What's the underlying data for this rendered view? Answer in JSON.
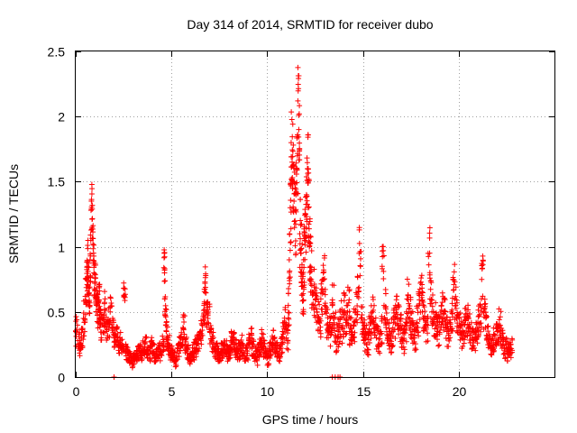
{
  "chart_data": {
    "type": "scatter",
    "title": "Day 314 of 2014, SRMTID for receiver dubo",
    "xlabel": "GPS time / hours",
    "ylabel": "SRMTID / TECUs",
    "xlim": [
      0,
      25
    ],
    "ylim": [
      0,
      2.5
    ],
    "xticks": [
      0,
      5,
      10,
      15,
      20
    ],
    "xtick_labels": [
      "0",
      "5",
      "10",
      "15",
      "20"
    ],
    "yticks": [
      0,
      0.5,
      1,
      1.5,
      2,
      2.5
    ],
    "ytick_labels": [
      "0",
      "0.5",
      "1",
      "1.5",
      "2",
      "2.5"
    ],
    "grid": true,
    "marker": "+",
    "color": "#ff0000",
    "series": [
      {
        "name": "SRMTID",
        "x": [
          0.0,
          0.1,
          0.2,
          0.3,
          0.4,
          0.5,
          0.55,
          0.6,
          0.65,
          0.7,
          0.75,
          0.8,
          0.85,
          0.9,
          0.95,
          1.0,
          1.05,
          1.1,
          1.15,
          1.2,
          1.25,
          1.3,
          1.4,
          1.5,
          1.6,
          1.7,
          1.8,
          1.9,
          2.0,
          2.1,
          2.2,
          2.3,
          2.4,
          2.5,
          2.6,
          2.7,
          2.8,
          2.9,
          3.0,
          3.1,
          3.2,
          3.3,
          3.4,
          3.5,
          3.6,
          3.7,
          3.8,
          3.9,
          4.0,
          4.1,
          4.2,
          4.3,
          4.4,
          4.5,
          4.6,
          4.65,
          4.7,
          4.75,
          4.8,
          4.9,
          5.0,
          5.1,
          5.2,
          5.3,
          5.4,
          5.5,
          5.6,
          5.7,
          5.8,
          5.9,
          6.0,
          6.1,
          6.2,
          6.3,
          6.4,
          6.5,
          6.6,
          6.7,
          6.75,
          6.8,
          6.9,
          7.0,
          7.1,
          7.2,
          7.3,
          7.4,
          7.5,
          7.6,
          7.7,
          7.8,
          7.9,
          8.0,
          8.1,
          8.2,
          8.3,
          8.4,
          8.5,
          8.6,
          8.7,
          8.8,
          8.9,
          9.0,
          9.1,
          9.2,
          9.3,
          9.4,
          9.5,
          9.6,
          9.7,
          9.8,
          9.9,
          10.0,
          10.1,
          10.2,
          10.3,
          10.4,
          10.5,
          10.6,
          10.7,
          10.8,
          10.9,
          11.0,
          11.1,
          11.15,
          11.2,
          11.25,
          11.3,
          11.35,
          11.4,
          11.45,
          11.5,
          11.55,
          11.6,
          11.65,
          11.7,
          11.75,
          11.8,
          11.85,
          11.9,
          11.95,
          12.0,
          12.05,
          12.1,
          12.15,
          12.2,
          12.25,
          12.3,
          12.4,
          12.5,
          12.6,
          12.7,
          12.8,
          12.9,
          13.0,
          13.1,
          13.2,
          13.3,
          13.4,
          13.5,
          13.6,
          13.7,
          13.8,
          13.9,
          14.0,
          14.1,
          14.2,
          14.3,
          14.4,
          14.5,
          14.6,
          14.7,
          14.8,
          14.9,
          15.0,
          15.1,
          15.2,
          15.3,
          15.4,
          15.5,
          15.6,
          15.7,
          15.8,
          15.9,
          16.0,
          16.1,
          16.2,
          16.3,
          16.4,
          16.5,
          16.6,
          16.7,
          16.8,
          16.9,
          17.0,
          17.1,
          17.2,
          17.3,
          17.4,
          17.5,
          17.6,
          17.7,
          17.8,
          17.9,
          18.0,
          18.1,
          18.2,
          18.3,
          18.4,
          18.5,
          18.6,
          18.7,
          18.8,
          18.9,
          19.0,
          19.1,
          19.2,
          19.3,
          19.4,
          19.5,
          19.6,
          19.7,
          19.8,
          19.9,
          20.0,
          20.1,
          20.2,
          20.3,
          20.4,
          20.5,
          20.6,
          20.7,
          20.8,
          20.9,
          21.0,
          21.1,
          21.2,
          21.3,
          21.4,
          21.5,
          21.6,
          21.7,
          21.8,
          21.9,
          22.0,
          22.1,
          22.2,
          22.3,
          22.4,
          22.5,
          22.6,
          22.7
        ],
        "y": [
          0.35,
          0.28,
          0.22,
          0.3,
          0.45,
          0.62,
          0.75,
          0.85,
          0.7,
          0.55,
          0.9,
          1.28,
          1.15,
          1.02,
          0.8,
          0.72,
          0.6,
          0.55,
          0.5,
          0.58,
          0.48,
          0.4,
          0.45,
          0.52,
          0.35,
          0.42,
          0.5,
          0.38,
          0.3,
          0.32,
          0.25,
          0.3,
          0.22,
          0.68,
          0.2,
          0.18,
          0.15,
          0.12,
          0.14,
          0.16,
          0.18,
          0.2,
          0.15,
          0.22,
          0.25,
          0.2,
          0.18,
          0.24,
          0.2,
          0.16,
          0.2,
          0.22,
          0.18,
          0.25,
          0.84,
          0.6,
          0.4,
          0.3,
          0.25,
          0.2,
          0.18,
          0.15,
          0.12,
          0.2,
          0.26,
          0.3,
          0.38,
          0.25,
          0.2,
          0.15,
          0.18,
          0.2,
          0.22,
          0.25,
          0.3,
          0.35,
          0.4,
          0.55,
          0.73,
          0.5,
          0.45,
          0.35,
          0.28,
          0.22,
          0.2,
          0.18,
          0.15,
          0.2,
          0.25,
          0.22,
          0.18,
          0.2,
          0.28,
          0.3,
          0.22,
          0.18,
          0.2,
          0.25,
          0.22,
          0.18,
          0.2,
          0.25,
          0.3,
          0.22,
          0.18,
          0.15,
          0.2,
          0.25,
          0.28,
          0.22,
          0.18,
          0.15,
          0.2,
          0.25,
          0.3,
          0.22,
          0.2,
          0.18,
          0.25,
          0.35,
          0.42,
          0.3,
          0.55,
          0.9,
          1.3,
          1.8,
          1.65,
          1.5,
          1.35,
          1.2,
          1.4,
          1.6,
          2.12,
          1.9,
          1.1,
          0.95,
          0.8,
          0.7,
          0.9,
          1.05,
          1.25,
          1.4,
          1.6,
          1.3,
          1.0,
          0.85,
          0.75,
          0.65,
          0.55,
          0.5,
          0.45,
          0.6,
          0.75,
          0.55,
          0.4,
          0.35,
          0.45,
          0.55,
          0.4,
          0.3,
          0.35,
          0.45,
          0.38,
          0.5,
          0.42,
          0.55,
          0.35,
          0.3,
          0.4,
          0.5,
          0.62,
          0.95,
          0.45,
          0.35,
          0.3,
          0.25,
          0.35,
          0.42,
          0.5,
          0.38,
          0.3,
          0.25,
          0.35,
          0.85,
          0.55,
          0.4,
          0.32,
          0.28,
          0.35,
          0.42,
          0.55,
          0.45,
          0.38,
          0.3,
          0.28,
          0.4,
          0.6,
          0.5,
          0.4,
          0.35,
          0.3,
          0.42,
          0.55,
          0.72,
          0.5,
          0.45,
          0.38,
          0.95,
          0.6,
          0.5,
          0.45,
          0.4,
          0.35,
          0.42,
          0.55,
          0.48,
          0.4,
          0.35,
          0.42,
          0.5,
          0.75,
          0.6,
          0.45,
          0.38,
          0.32,
          0.35,
          0.4,
          0.45,
          0.38,
          0.32,
          0.3,
          0.28,
          0.35,
          0.42,
          0.48,
          0.75,
          0.5,
          0.38,
          0.3,
          0.25,
          0.22,
          0.28,
          0.32,
          0.35,
          0.4,
          0.3,
          0.25,
          0.22,
          0.2,
          0.25,
          0.22
        ],
        "spread": [
          0.12,
          0.1,
          0.08,
          0.1,
          0.14,
          0.16,
          0.18,
          0.2,
          0.18,
          0.16,
          0.2,
          0.2,
          0.2,
          0.18,
          0.18,
          0.16,
          0.14,
          0.14,
          0.14,
          0.14,
          0.12,
          0.12,
          0.12,
          0.14,
          0.1,
          0.12,
          0.12,
          0.1,
          0.08,
          0.08,
          0.08,
          0.08,
          0.07,
          0.1,
          0.07,
          0.06,
          0.05,
          0.05,
          0.05,
          0.05,
          0.06,
          0.06,
          0.05,
          0.06,
          0.07,
          0.06,
          0.06,
          0.07,
          0.06,
          0.05,
          0.06,
          0.07,
          0.06,
          0.07,
          0.14,
          0.14,
          0.12,
          0.1,
          0.08,
          0.07,
          0.06,
          0.05,
          0.05,
          0.07,
          0.08,
          0.09,
          0.1,
          0.08,
          0.07,
          0.06,
          0.06,
          0.07,
          0.07,
          0.08,
          0.09,
          0.1,
          0.12,
          0.14,
          0.12,
          0.12,
          0.12,
          0.1,
          0.09,
          0.08,
          0.07,
          0.06,
          0.06,
          0.07,
          0.08,
          0.07,
          0.06,
          0.07,
          0.08,
          0.09,
          0.07,
          0.06,
          0.07,
          0.08,
          0.07,
          0.06,
          0.07,
          0.08,
          0.09,
          0.07,
          0.06,
          0.06,
          0.07,
          0.08,
          0.09,
          0.07,
          0.06,
          0.06,
          0.07,
          0.08,
          0.09,
          0.07,
          0.07,
          0.06,
          0.08,
          0.1,
          0.12,
          0.1,
          0.16,
          0.25,
          0.3,
          0.3,
          0.3,
          0.3,
          0.3,
          0.28,
          0.3,
          0.3,
          0.3,
          0.3,
          0.28,
          0.26,
          0.24,
          0.22,
          0.26,
          0.28,
          0.3,
          0.3,
          0.3,
          0.3,
          0.28,
          0.24,
          0.22,
          0.2,
          0.18,
          0.16,
          0.15,
          0.18,
          0.2,
          0.16,
          0.14,
          0.12,
          0.14,
          0.16,
          0.14,
          0.12,
          0.12,
          0.14,
          0.12,
          0.15,
          0.13,
          0.16,
          0.12,
          0.1,
          0.13,
          0.15,
          0.16,
          0.2,
          0.14,
          0.12,
          0.1,
          0.09,
          0.12,
          0.13,
          0.15,
          0.12,
          0.1,
          0.09,
          0.12,
          0.18,
          0.15,
          0.13,
          0.11,
          0.1,
          0.12,
          0.13,
          0.15,
          0.14,
          0.12,
          0.1,
          0.1,
          0.13,
          0.16,
          0.15,
          0.13,
          0.12,
          0.1,
          0.13,
          0.15,
          0.18,
          0.15,
          0.14,
          0.12,
          0.2,
          0.16,
          0.15,
          0.14,
          0.13,
          0.12,
          0.13,
          0.15,
          0.14,
          0.13,
          0.12,
          0.13,
          0.15,
          0.18,
          0.16,
          0.14,
          0.12,
          0.11,
          0.12,
          0.13,
          0.14,
          0.12,
          0.11,
          0.1,
          0.1,
          0.12,
          0.13,
          0.14,
          0.18,
          0.15,
          0.12,
          0.1,
          0.09,
          0.08,
          0.1,
          0.11,
          0.12,
          0.13,
          0.1,
          0.09,
          0.08,
          0.08,
          0.09,
          0.08
        ]
      }
    ],
    "zero_points_x": [
      2.0,
      13.4,
      13.55,
      13.7,
      13.8
    ]
  }
}
